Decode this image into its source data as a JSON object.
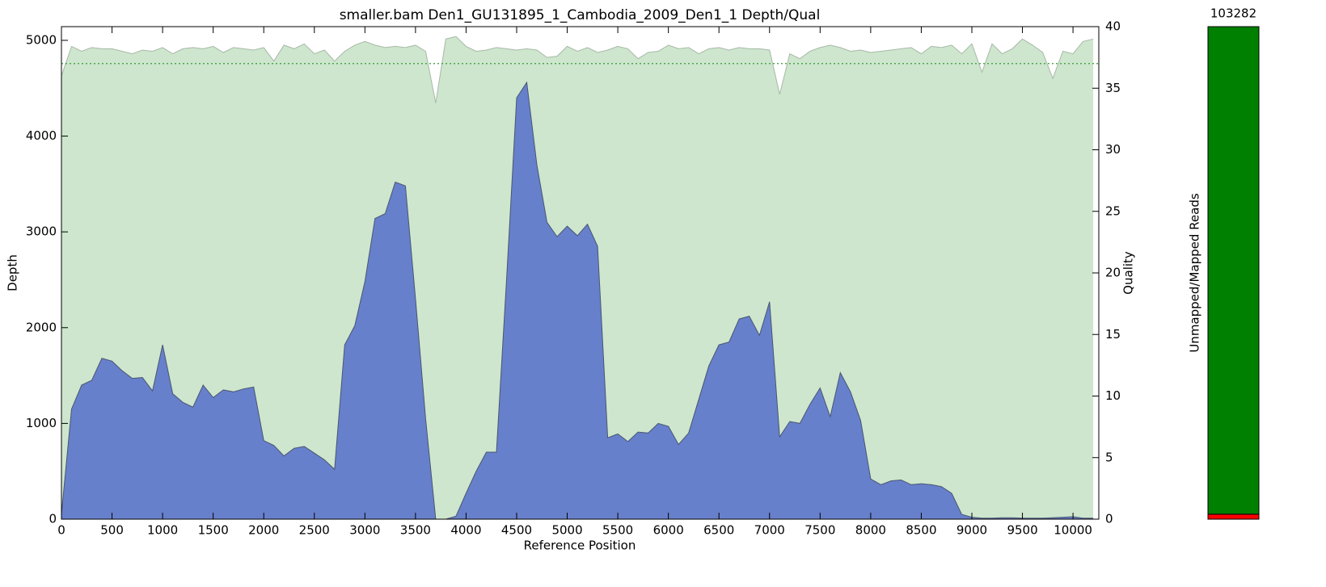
{
  "chart_data": [
    {
      "type": "area",
      "title": "smaller.bam Den1_GU131895_1_Cambodia_2009_Den1_1 Depth/Qual",
      "xlabel": "Reference Position",
      "ylabel": "Depth",
      "y2label": "Quality",
      "x": [
        0,
        100,
        200,
        300,
        400,
        500,
        600,
        700,
        800,
        900,
        1000,
        1100,
        1200,
        1300,
        1400,
        1500,
        1600,
        1700,
        1800,
        1900,
        2000,
        2100,
        2200,
        2300,
        2400,
        2500,
        2600,
        2700,
        2800,
        2900,
        3000,
        3100,
        3200,
        3300,
        3400,
        3500,
        3600,
        3700,
        3800,
        3900,
        4000,
        4100,
        4200,
        4300,
        4400,
        4500,
        4600,
        4700,
        4800,
        4900,
        5000,
        5100,
        5200,
        5300,
        5400,
        5500,
        5600,
        5700,
        5800,
        5900,
        6000,
        6100,
        6200,
        6300,
        6400,
        6500,
        6600,
        6700,
        6800,
        6900,
        7000,
        7100,
        7200,
        7300,
        7400,
        7500,
        7600,
        7700,
        7800,
        7900,
        8000,
        8100,
        8200,
        8300,
        8400,
        8500,
        8600,
        8700,
        8800,
        8900,
        9000,
        9100,
        9200,
        9300,
        9400,
        9500,
        9600,
        9700,
        9800,
        9900,
        10000,
        10100,
        10200
      ],
      "series": [
        {
          "color": "#cde6cd",
          "axis": "y2",
          "values": [
            36,
            38.4,
            38,
            38.3,
            38.2,
            38.2,
            38,
            37.8,
            38.1,
            38,
            38.3,
            37.8,
            38.2,
            38.3,
            38.2,
            38.4,
            37.9,
            38.3,
            38.2,
            38.1,
            38.3,
            37.2,
            38.5,
            38.2,
            38.6,
            37.8,
            38.1,
            37.2,
            38,
            38.5,
            38.8,
            38.5,
            38.3,
            38.4,
            38.3,
            38.5,
            38,
            33.8,
            39,
            39.2,
            38.4,
            38,
            38.1,
            38.3,
            38.2,
            38.1,
            38.2,
            38.1,
            37.5,
            37.6,
            38.4,
            38,
            38.3,
            37.9,
            38.1,
            38.4,
            38.2,
            37.4,
            37.9,
            38,
            38.5,
            38.2,
            38.3,
            37.8,
            38.2,
            38.3,
            38.1,
            38.3,
            38.2,
            38.2,
            38.1,
            34.5,
            37.8,
            37.4,
            38,
            38.3,
            38.5,
            38.3,
            38,
            38.1,
            37.9,
            38,
            38.1,
            38.2,
            38.3,
            37.8,
            38.4,
            38.3,
            38.5,
            37.8,
            38.6,
            36.3,
            38.6,
            37.8,
            38.2,
            39,
            38.5,
            37.9,
            35.8,
            38,
            37.8,
            38.8,
            39
          ]
        },
        {
          "color": "#6780cc",
          "values": [
            50,
            1150,
            1400,
            1450,
            1680,
            1650,
            1550,
            1470,
            1480,
            1340,
            1820,
            1310,
            1220,
            1170,
            1400,
            1270,
            1350,
            1330,
            1360,
            1380,
            820,
            770,
            660,
            740,
            760,
            690,
            620,
            520,
            1820,
            2020,
            2480,
            3140,
            3190,
            3520,
            3480,
            2300,
            1050,
            0,
            0,
            30,
            270,
            500,
            700,
            700,
            2500,
            4400,
            4560,
            3700,
            3100,
            2950,
            3060,
            2960,
            3080,
            2850,
            850,
            890,
            810,
            910,
            900,
            1000,
            970,
            780,
            900,
            1250,
            1600,
            1820,
            1850,
            2090,
            2120,
            1920,
            2270,
            860,
            1020,
            1000,
            1200,
            1370,
            1070,
            1530,
            1330,
            1030,
            420,
            360,
            400,
            410,
            360,
            370,
            360,
            340,
            270,
            50,
            20,
            10,
            10,
            15,
            15,
            10,
            10,
            10,
            15,
            20,
            25,
            10,
            10
          ]
        }
      ],
      "hline": {
        "value": 37,
        "axis": "y2",
        "color": "#3a9a3a"
      },
      "xlim": [
        0,
        10255
      ],
      "xticks": [
        0,
        500,
        1000,
        1500,
        2000,
        2500,
        3000,
        3500,
        4000,
        4500,
        5000,
        5500,
        6000,
        6500,
        7000,
        7500,
        8000,
        8500,
        9000,
        9500,
        10000
      ],
      "ylim": [
        0,
        5143
      ],
      "yticks": [
        0,
        1000,
        2000,
        3000,
        4000,
        5000
      ],
      "y2lim": [
        0,
        40
      ],
      "y2ticks": [
        0,
        5,
        10,
        15,
        20,
        25,
        30,
        35,
        40
      ]
    },
    {
      "type": "stacked_bar",
      "ylabel": "Unmapped/Mapped Reads",
      "values": [
        1067,
        103282
      ],
      "colors": [
        "#ff0000",
        "#008000"
      ]
    }
  ]
}
